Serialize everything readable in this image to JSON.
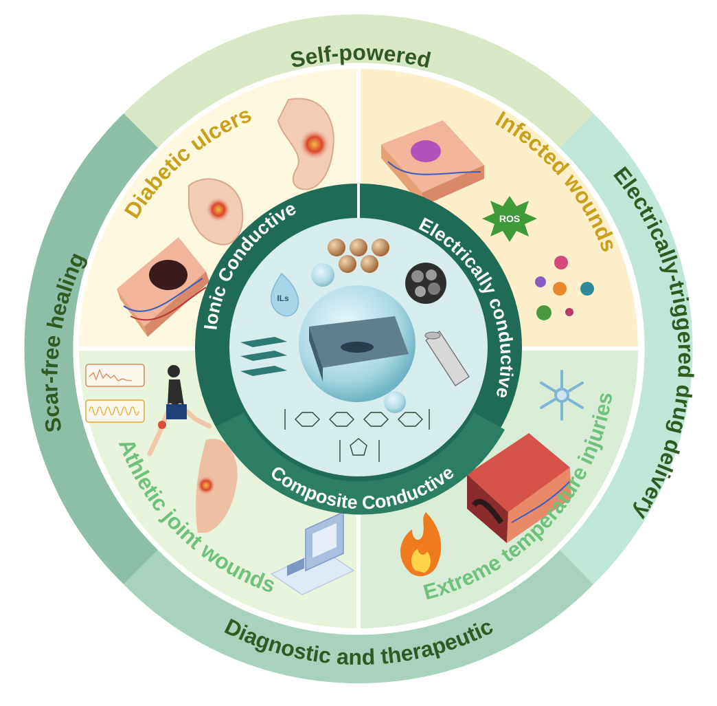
{
  "outer_ring": {
    "top_label": "Self-powered",
    "right_label": "Electrically-triggered drug delivery",
    "bottom_label": "Diagnostic and therapeutic",
    "left_label": "Scar-free healing"
  },
  "quadrants": {
    "top_left": "Diabetic ulcers",
    "top_right": "Infected wounds",
    "bottom_left": "Athletic joint wounds",
    "bottom_right": "Extreme temperature injuries"
  },
  "inner_ring": {
    "ionic": "Ionic Conductive",
    "electrical": "Electrically conductive",
    "composite": "Composite Conductive"
  },
  "badges": {
    "ros": "ROS",
    "ils": "ILs"
  },
  "colors": {
    "outer_top": "#d9e8c4",
    "outer_right": "#bfe7d8",
    "outer_bottom": "#a7d2be",
    "outer_left": "#8dbfa8",
    "quad_top_left": "#fdf8de",
    "quad_top_right": "#fcefc9",
    "quad_bottom_left": "#e8f3dc",
    "quad_bottom_right": "#d8ecd6",
    "inner_ring_dark": "#1f6b55",
    "inner_ring_mid": "#2b7d64",
    "label_gold": "#c9a01a",
    "label_green_light": "#6ec279",
    "label_dark_green": "#2f5a22"
  }
}
